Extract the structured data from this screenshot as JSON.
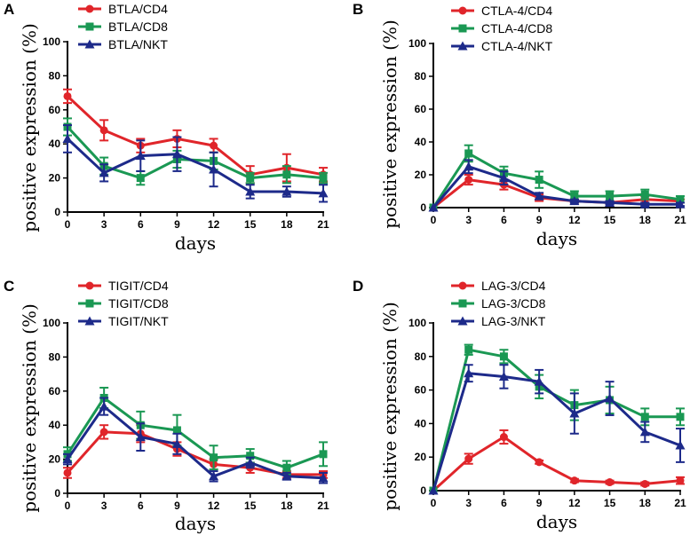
{
  "colors": {
    "CD4": "#e0252a",
    "CD8": "#1a9853",
    "NKT": "#1d2a8a"
  },
  "chart_data": [
    {
      "panel": "A",
      "type": "line",
      "xlabel": "days",
      "ylabel": "positive expression (%)",
      "x": [
        0,
        3,
        6,
        9,
        12,
        15,
        18,
        21
      ],
      "xticks": [
        "0",
        "3",
        "6",
        "9",
        "12",
        "15",
        "18",
        "21"
      ],
      "ylim": [
        0,
        100
      ],
      "yticks": [
        "0",
        "20",
        "40",
        "60",
        "80",
        "100"
      ],
      "series": [
        {
          "name": "BTLA/CD4",
          "group": "CD4",
          "marker": "circle",
          "values": [
            68,
            48,
            39,
            43,
            39,
            22,
            26,
            22
          ],
          "errors": [
            4,
            6,
            4,
            5,
            4,
            5,
            8,
            4
          ]
        },
        {
          "name": "BTLA/CD8",
          "group": "CD8",
          "marker": "square",
          "values": [
            50,
            27,
            20,
            31,
            30,
            20,
            22,
            20
          ],
          "errors": [
            5,
            5,
            4,
            5,
            5,
            3,
            5,
            3
          ]
        },
        {
          "name": "BTLA/NKT",
          "group": "NKT",
          "marker": "triangle",
          "values": [
            43,
            23,
            33,
            34,
            25,
            12,
            12,
            11
          ],
          "errors": [
            8,
            5,
            9,
            10,
            10,
            4,
            3,
            5
          ]
        }
      ]
    },
    {
      "panel": "B",
      "type": "line",
      "xlabel": "days",
      "ylabel": "positive expression (%)",
      "x": [
        0,
        3,
        6,
        9,
        12,
        15,
        18,
        21
      ],
      "xticks": [
        "0",
        "3",
        "6",
        "9",
        "12",
        "15",
        "18",
        "21"
      ],
      "ylim": [
        0,
        100
      ],
      "yticks": [
        "0",
        "20",
        "40",
        "60",
        "80",
        "100"
      ],
      "series": [
        {
          "name": "CTLA-4/CD4",
          "group": "CD4",
          "marker": "circle",
          "values": [
            0,
            17,
            14,
            6,
            4,
            3,
            5,
            4
          ],
          "errors": [
            0,
            3,
            3,
            2,
            1,
            1,
            2,
            1
          ]
        },
        {
          "name": "CTLA-4/CD8",
          "group": "CD8",
          "marker": "square",
          "values": [
            0,
            33,
            21,
            17,
            7,
            7,
            8,
            5
          ],
          "errors": [
            0,
            5,
            4,
            5,
            3,
            3,
            3,
            2
          ]
        },
        {
          "name": "CTLA-4/NKT",
          "group": "NKT",
          "marker": "triangle",
          "values": [
            0,
            25,
            18,
            7,
            4,
            3,
            2,
            2
          ],
          "errors": [
            0,
            4,
            4,
            2,
            1,
            1,
            1,
            1
          ]
        }
      ]
    },
    {
      "panel": "C",
      "type": "line",
      "xlabel": "days",
      "ylabel": "positive expression (%)",
      "x": [
        0,
        3,
        6,
        9,
        12,
        15,
        18,
        21
      ],
      "xticks": [
        "0",
        "3",
        "6",
        "9",
        "12",
        "15",
        "18",
        "21"
      ],
      "ylim": [
        0,
        100
      ],
      "yticks": [
        "0",
        "20",
        "40",
        "60",
        "80",
        "100"
      ],
      "series": [
        {
          "name": "TIGIT/CD4",
          "group": "CD4",
          "marker": "circle",
          "values": [
            12,
            36,
            35,
            26,
            17,
            15,
            11,
            11
          ],
          "errors": [
            3,
            4,
            5,
            4,
            3,
            3,
            2,
            2
          ]
        },
        {
          "name": "TIGIT/CD8",
          "group": "CD8",
          "marker": "square",
          "values": [
            23,
            56,
            40,
            37,
            21,
            22,
            15,
            23
          ],
          "errors": [
            4,
            6,
            8,
            9,
            7,
            4,
            4,
            7
          ]
        },
        {
          "name": "TIGIT/NKT",
          "group": "NKT",
          "marker": "triangle",
          "values": [
            20,
            51,
            33,
            29,
            10,
            18,
            10,
            9
          ],
          "errors": [
            3,
            5,
            8,
            6,
            3,
            3,
            2,
            3
          ]
        }
      ]
    },
    {
      "panel": "D",
      "type": "line",
      "xlabel": "days",
      "ylabel": "positive expression (%)",
      "x": [
        0,
        3,
        6,
        9,
        12,
        15,
        18,
        21
      ],
      "xticks": [
        "0",
        "3",
        "6",
        "9",
        "12",
        "15",
        "18",
        "21"
      ],
      "ylim": [
        0,
        100
      ],
      "yticks": [
        "0",
        "20",
        "40",
        "60",
        "80",
        "100"
      ],
      "series": [
        {
          "name": "LAG-3/CD4",
          "group": "CD4",
          "marker": "circle",
          "values": [
            0,
            19,
            32,
            17,
            6,
            5,
            4,
            6
          ],
          "errors": [
            0,
            3,
            4,
            1,
            1,
            1,
            1,
            2
          ]
        },
        {
          "name": "LAG-3/CD8",
          "group": "CD8",
          "marker": "square",
          "values": [
            0,
            84,
            80,
            62,
            51,
            54,
            44,
            44
          ],
          "errors": [
            0,
            3,
            4,
            7,
            9,
            8,
            5,
            5
          ]
        },
        {
          "name": "LAG-3/NKT",
          "group": "NKT",
          "marker": "triangle",
          "values": [
            0,
            70,
            68,
            65,
            46,
            55,
            35,
            27
          ],
          "errors": [
            0,
            5,
            7,
            7,
            12,
            10,
            6,
            10
          ]
        }
      ]
    }
  ]
}
